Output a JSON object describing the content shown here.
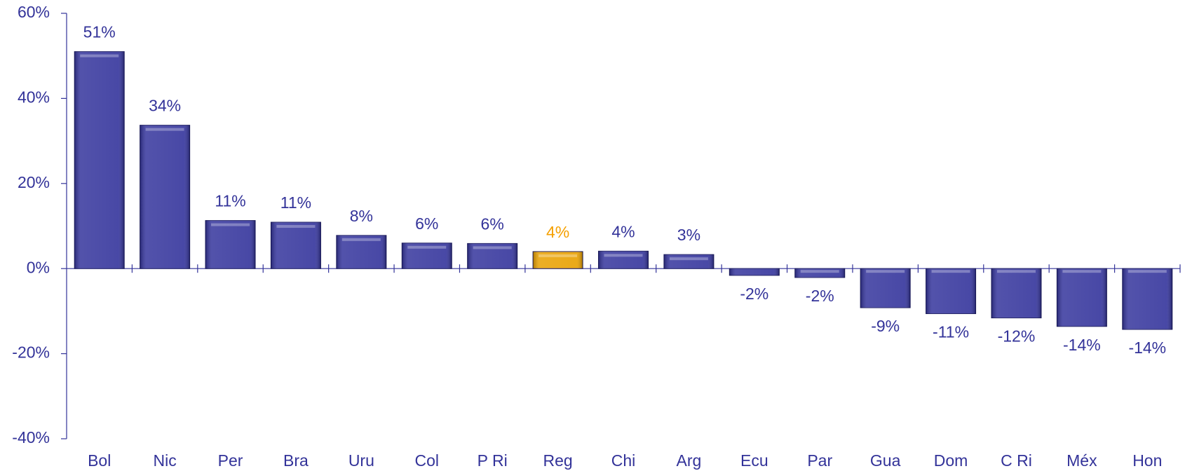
{
  "chart_data": {
    "type": "bar",
    "categories": [
      "Bol",
      "Nic",
      "Per",
      "Bra",
      "Uru",
      "Col",
      "P Ri",
      "Reg",
      "Chi",
      "Arg",
      "Ecu",
      "Par",
      "Gua",
      "Dom",
      "C Ri",
      "Méx",
      "Hon"
    ],
    "values": [
      51,
      33.7,
      11.3,
      10.9,
      7.8,
      6,
      5.9,
      4,
      4.1,
      3.3,
      -1.6,
      -2.1,
      -9.2,
      -10.6,
      -11.6,
      -13.6,
      -14.3
    ],
    "value_labels": [
      "51%",
      "34%",
      "11%",
      "11%",
      "8%",
      "6%",
      "6%",
      "4%",
      "4%",
      "3%",
      "-2%",
      "-2%",
      "-9%",
      "-11%",
      "-12%",
      "-14%",
      "-14%"
    ],
    "colors": [
      "#34349c",
      "#34349c",
      "#34349c",
      "#34349c",
      "#34349c",
      "#34349c",
      "#34349c",
      "#e8a000",
      "#34349c",
      "#34349c",
      "#34349c",
      "#34349c",
      "#34349c",
      "#34349c",
      "#34349c",
      "#34349c",
      "#34349c"
    ],
    "label_colors": [
      "#333399",
      "#333399",
      "#333399",
      "#333399",
      "#333399",
      "#333399",
      "#333399",
      "#f5a000",
      "#333399",
      "#333399",
      "#333399",
      "#333399",
      "#333399",
      "#333399",
      "#333399",
      "#333399",
      "#333399"
    ],
    "ylim": [
      -40,
      60
    ],
    "yticks": [
      {
        "value": -40,
        "label": "-40%"
      },
      {
        "value": -20,
        "label": "-20%"
      },
      {
        "value": 0,
        "label": "0%"
      },
      {
        "value": 20,
        "label": "20%"
      },
      {
        "value": 40,
        "label": "40%"
      },
      {
        "value": 60,
        "label": "60%"
      }
    ],
    "grid": false
  }
}
